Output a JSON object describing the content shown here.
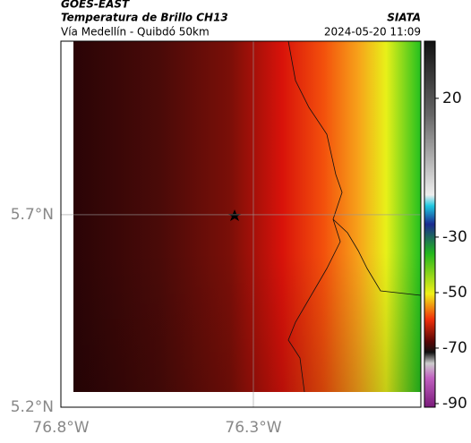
{
  "header": {
    "source": "GOES-EAST",
    "title": "Temperatura de Brillo CH13",
    "org": "SIATA",
    "subtitle": "Vía Medellín - Quibdó 50km",
    "timestamp": "2024-05-20 11:09"
  },
  "map": {
    "xlim": [
      -76.8,
      -75.865
    ],
    "ylim": [
      5.2,
      6.151
    ],
    "grid": true,
    "xticks": [
      {
        "value": -76.8,
        "label": "76.8°W"
      },
      {
        "value": -76.3,
        "label": "76.3°W"
      }
    ],
    "yticks": [
      {
        "value": 5.2,
        "label": "5.2°N"
      },
      {
        "value": 5.7,
        "label": "5.7°N"
      }
    ]
  },
  "colorbar": {
    "lim": [
      -91.3,
      40.6
    ],
    "ticks": [
      20,
      -30,
      -50,
      -70,
      -90
    ]
  }
}
